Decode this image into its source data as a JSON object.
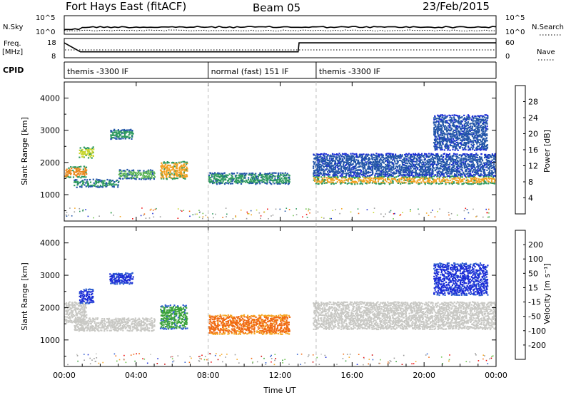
{
  "header": {
    "station": "Fort Hays East (fitACF)",
    "beam": "Beam 05",
    "date": "23/Feb/2015"
  },
  "summary": {
    "nsky_label": "N.Sky",
    "nsearch_label": "N.Search",
    "nsky_ticks": [
      "10^5",
      "10^0"
    ],
    "nsearch_ticks": [
      "10^5",
      "10^0"
    ],
    "freq_label": "Freq.",
    "freq_unit": "[MHz]",
    "freq_ticks": [
      "18",
      "8"
    ],
    "nave_label": "Nave",
    "nave_ticks": [
      "60",
      "0"
    ],
    "cpid_label": "CPID",
    "cpid_segments": [
      {
        "label": "themis -3300 IF",
        "start_hour": 0,
        "end_hour": 8
      },
      {
        "label": "normal (fast) 151 IF",
        "start_hour": 8,
        "end_hour": 14
      },
      {
        "label": "themis -3300 IF",
        "start_hour": 14,
        "end_hour": 24
      }
    ],
    "freq_steps": [
      {
        "hour": 0,
        "mhz": 17
      },
      {
        "hour": 0.9,
        "mhz": 11
      },
      {
        "hour": 13,
        "mhz": 11
      },
      {
        "hour": 13.05,
        "mhz": 17
      },
      {
        "hour": 24,
        "mhz": 17
      }
    ]
  },
  "chart_data": [
    {
      "type": "heatmap",
      "quantity": "Power",
      "ylabel": "Slant Range [km]",
      "ylim": [
        180,
        4500
      ],
      "yticks": [
        1000,
        2000,
        3000,
        4000
      ],
      "xlim_hours": [
        0,
        24
      ],
      "colorbar_label": "Power [dB]",
      "colorbar_ticks": [
        "28",
        "24",
        "20",
        "16",
        "12",
        "8",
        "4"
      ],
      "colorbar_colors": [
        "#ee1111",
        "#f06a12",
        "#f5a623",
        "#c8d630",
        "#6cc14a",
        "#2f9a5f",
        "#2255a8",
        "#1a2bd6"
      ],
      "echo_bands": [
        {
          "h0": 0.0,
          "h1": 1.2,
          "r0": 1550,
          "r1": 1900,
          "color": "#e8871c",
          "edge": "#2f9a5f"
        },
        {
          "h0": 0.5,
          "h1": 3.0,
          "r0": 1250,
          "r1": 1500,
          "color": "#2f9a5f",
          "edge": "#2255a8"
        },
        {
          "h0": 3.0,
          "h1": 5.0,
          "r0": 1500,
          "r1": 1800,
          "color": "#5fb65a",
          "edge": "#2255a8"
        },
        {
          "h0": 5.3,
          "h1": 6.8,
          "r0": 1500,
          "r1": 2050,
          "color": "#f0a020",
          "edge": "#2f9a5f"
        },
        {
          "h0": 2.5,
          "h1": 3.8,
          "r0": 2750,
          "r1": 3050,
          "color": "#2f9a5f",
          "edge": "#2255a8"
        },
        {
          "h0": 0.8,
          "h1": 1.6,
          "r0": 2150,
          "r1": 2500,
          "color": "#c8d630",
          "edge": "#2f9a5f"
        },
        {
          "h0": 8.0,
          "h1": 12.5,
          "r0": 1350,
          "r1": 1700,
          "color": "#2f9a5f",
          "edge": "#2255a8"
        },
        {
          "h0": 13.8,
          "h1": 24.0,
          "r0": 1350,
          "r1": 1600,
          "color": "#f0a020",
          "edge": "#2f9a5f"
        },
        {
          "h0": 13.8,
          "h1": 24.0,
          "r0": 1600,
          "r1": 2300,
          "color": "#2255a8",
          "edge": "#1a2bd6"
        },
        {
          "h0": 20.5,
          "h1": 23.5,
          "r0": 2400,
          "r1": 3500,
          "color": "#2255a8",
          "edge": "#1a2bd6"
        }
      ]
    },
    {
      "type": "heatmap",
      "quantity": "Velocity",
      "ylabel": "Slant Range [km]",
      "ylim": [
        180,
        4500
      ],
      "yticks": [
        1000,
        2000,
        3000,
        4000
      ],
      "xlim_hours": [
        0,
        24
      ],
      "xticks": [
        "00:00",
        "04:00",
        "08:00",
        "12:00",
        "16:00",
        "20:00",
        "00:00"
      ],
      "xlabel": "Time UT",
      "colorbar_label": "Velocity [m s⁻¹]",
      "colorbar_ticks": [
        "200",
        "100",
        "50",
        "15",
        "-15",
        "-50",
        "-100",
        "-200"
      ],
      "colorbar_colors": [
        "#1a2bd6",
        "#2f5fd0",
        "#3aa23a",
        "#6cc14a",
        "#c8c8c4",
        "#f5a623",
        "#f06a12",
        "#ee1111",
        "#cc0000"
      ],
      "echo_bands": [
        {
          "h0": 0.0,
          "h1": 1.2,
          "r0": 1550,
          "r1": 2200,
          "color": "#c8c8c4",
          "edge": "#c8c8c4"
        },
        {
          "h0": 0.5,
          "h1": 5.0,
          "r0": 1300,
          "r1": 1700,
          "color": "#c8c8c4",
          "edge": "#c8c8c4"
        },
        {
          "h0": 0.8,
          "h1": 1.6,
          "r0": 2150,
          "r1": 2600,
          "color": "#1a2bd6",
          "edge": "#2f5fd0"
        },
        {
          "h0": 2.5,
          "h1": 3.8,
          "r0": 2750,
          "r1": 3100,
          "color": "#1a2bd6",
          "edge": "#2f5fd0"
        },
        {
          "h0": 5.3,
          "h1": 6.8,
          "r0": 1350,
          "r1": 2100,
          "color": "#3aa23a",
          "edge": "#2f5fd0"
        },
        {
          "h0": 8.0,
          "h1": 12.5,
          "r0": 1200,
          "r1": 1800,
          "color": "#f06a12",
          "edge": "#f5a623"
        },
        {
          "h0": 13.8,
          "h1": 24.0,
          "r0": 1350,
          "r1": 2200,
          "color": "#c8c8c4",
          "edge": "#c8c8c4"
        },
        {
          "h0": 20.5,
          "h1": 23.5,
          "r0": 2400,
          "r1": 3400,
          "color": "#1a2bd6",
          "edge": "#2f5fd0"
        }
      ]
    }
  ]
}
